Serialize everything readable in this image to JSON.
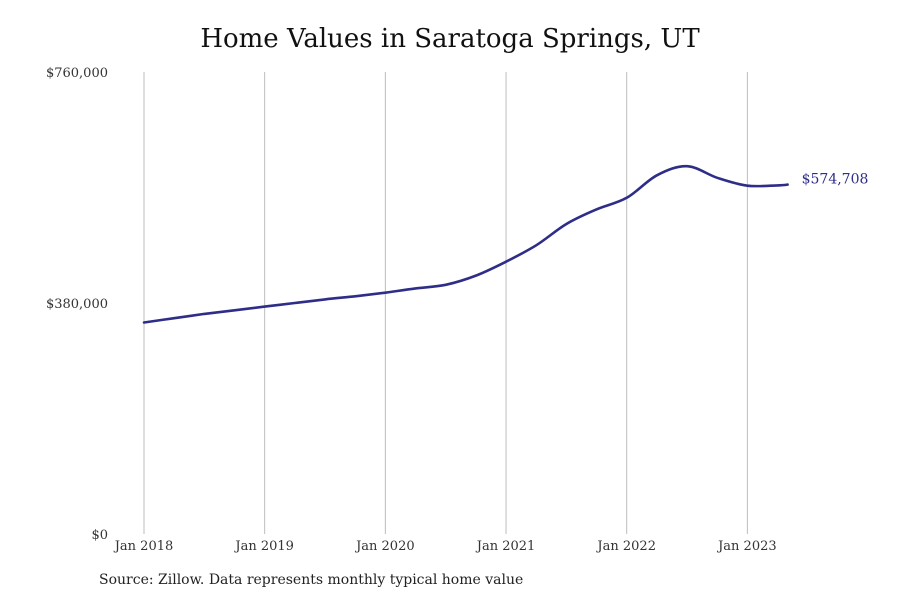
{
  "chart_data": {
    "type": "line",
    "title": "Home Values in Saratoga Springs, UT",
    "xlabel": "",
    "ylabel": "",
    "ylim": [
      0,
      760000
    ],
    "xlim": [
      "2018-01",
      "2023-12"
    ],
    "y_ticks": [
      0,
      380000,
      760000
    ],
    "y_tick_labels": [
      "$0",
      "$380,000",
      "$760,000"
    ],
    "x_ticks": [
      "2018-01",
      "2019-01",
      "2020-01",
      "2021-01",
      "2022-01",
      "2023-01"
    ],
    "x_tick_labels": [
      "Jan 2018",
      "Jan 2019",
      "Jan 2020",
      "Jan 2021",
      "Jan 2022",
      "Jan 2023"
    ],
    "grid": "vertical",
    "line_color": "#2e2d88",
    "end_label": "$574,708",
    "series": [
      {
        "points": [
          [
            "2018-01",
            348000
          ],
          [
            "2018-04",
            355000
          ],
          [
            "2018-07",
            362000
          ],
          [
            "2018-10",
            368000
          ],
          [
            "2019-01",
            374000
          ],
          [
            "2019-04",
            380000
          ],
          [
            "2019-07",
            386000
          ],
          [
            "2019-10",
            391000
          ],
          [
            "2020-01",
            397000
          ],
          [
            "2020-04",
            404000
          ],
          [
            "2020-07",
            410000
          ],
          [
            "2020-10",
            425000
          ],
          [
            "2021-01",
            448000
          ],
          [
            "2021-04",
            475000
          ],
          [
            "2021-07",
            510000
          ],
          [
            "2021-10",
            534000
          ],
          [
            "2022-01",
            553000
          ],
          [
            "2022-04",
            590000
          ],
          [
            "2022-07",
            605000
          ],
          [
            "2022-10",
            586000
          ],
          [
            "2023-01",
            573000
          ],
          [
            "2023-04",
            573500
          ],
          [
            "2023-05",
            574708
          ]
        ]
      }
    ]
  },
  "footer": {
    "source": "Source: Zillow. Data represents monthly typical home value"
  }
}
